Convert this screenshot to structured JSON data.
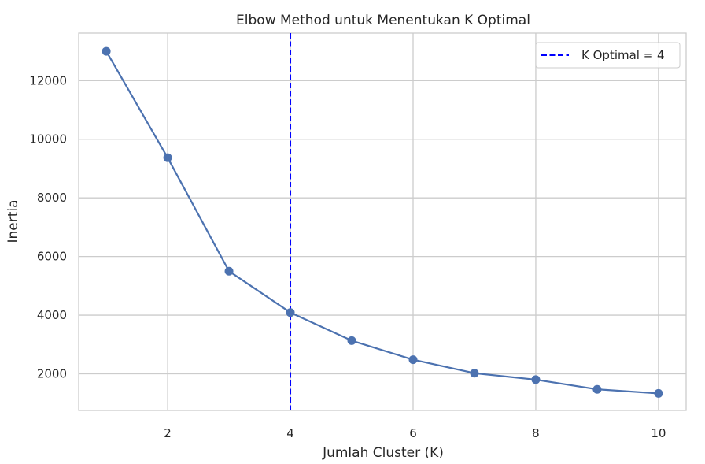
{
  "chart_data": {
    "type": "line",
    "title": "Elbow Method untuk Menentukan K Optimal",
    "xlabel": "Jumlah Cluster (K)",
    "ylabel": "Inertia",
    "x": [
      1,
      2,
      3,
      4,
      5,
      6,
      7,
      8,
      9,
      10
    ],
    "series": [
      {
        "values": [
          13000,
          9370,
          5500,
          4090,
          3130,
          2480,
          2020,
          1800,
          1470,
          1330
        ],
        "color": "#4c72b0",
        "marker": "circle"
      }
    ],
    "xlim": [
      0.55,
      10.45
    ],
    "ylim": [
      750,
      13620
    ],
    "xticks": [
      2,
      4,
      6,
      8,
      10
    ],
    "xtick_labels": [
      "2",
      "4",
      "6",
      "8",
      "10"
    ],
    "yticks": [
      2000,
      4000,
      6000,
      8000,
      10000,
      12000
    ],
    "ytick_labels": [
      "2000",
      "4000",
      "6000",
      "8000",
      "10000",
      "12000"
    ],
    "grid": true,
    "reference_line": {
      "orientation": "vertical",
      "x": 4,
      "style": "dashed",
      "color": "#0000ff",
      "label": "K Optimal = 4"
    },
    "legend": {
      "placement": "top-right",
      "entries": [
        "K Optimal = 4"
      ]
    }
  }
}
